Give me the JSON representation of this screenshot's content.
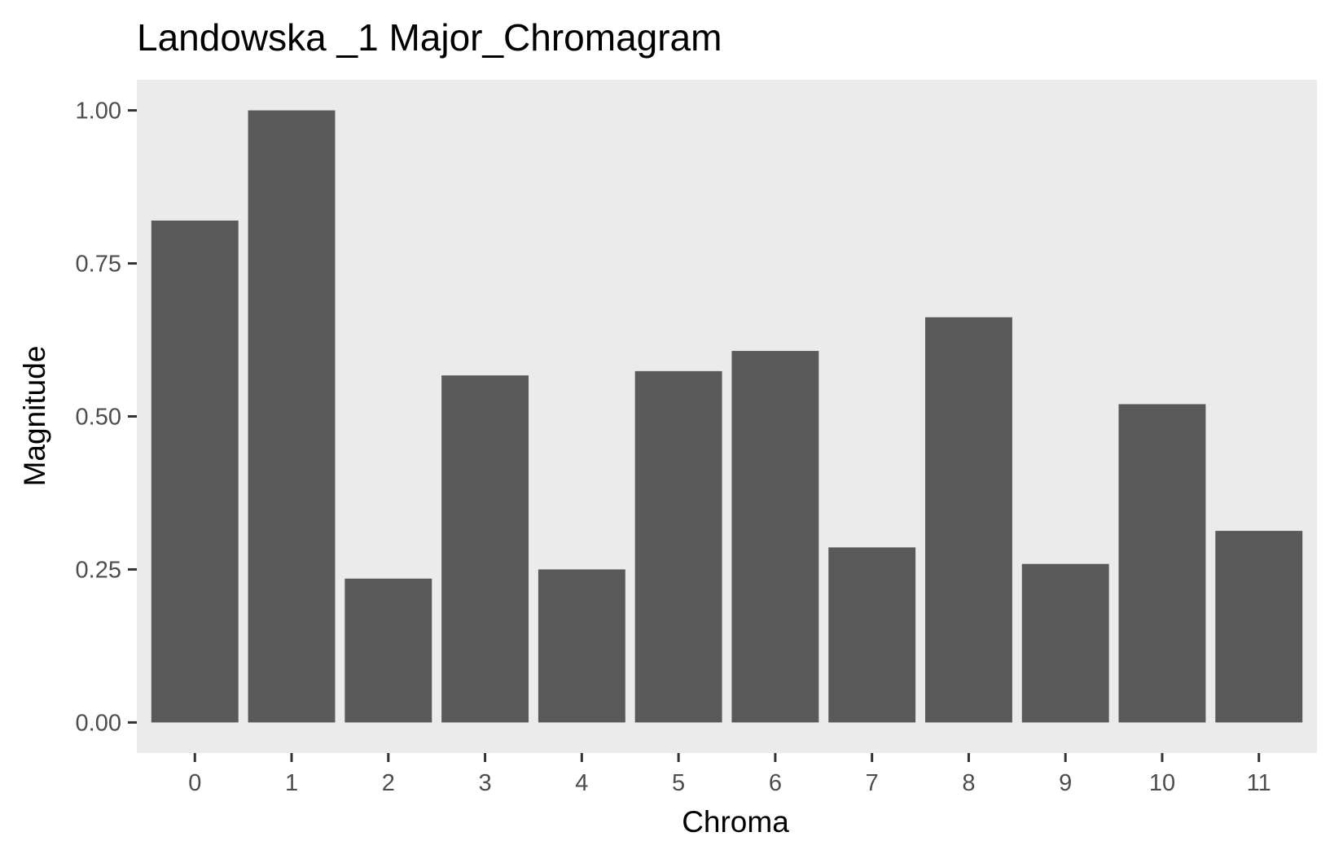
{
  "chart_data": {
    "type": "bar",
    "title": "Landowska _1 Major_Chromagram",
    "xlabel": "Chroma",
    "ylabel": "Magnitude",
    "categories": [
      "0",
      "1",
      "2",
      "3",
      "4",
      "5",
      "6",
      "7",
      "8",
      "9",
      "10",
      "11"
    ],
    "values": [
      0.82,
      1.0,
      0.235,
      0.567,
      0.25,
      0.574,
      0.607,
      0.286,
      0.662,
      0.259,
      0.52,
      0.313
    ],
    "ylim": [
      -0.05,
      1.05
    ],
    "yticks": [
      0,
      0.25,
      0.5,
      0.75,
      1.0
    ],
    "ytick_labels": [
      "0.00",
      "0.25",
      "0.50",
      "0.75",
      "1.00"
    ],
    "grid": false,
    "legend": "none",
    "colors": {
      "bar": "#595959",
      "panel": "#ebebeb",
      "tick": "#333333",
      "tick_label": "#4d4d4d",
      "text": "#000000",
      "background": "#ffffff"
    }
  }
}
